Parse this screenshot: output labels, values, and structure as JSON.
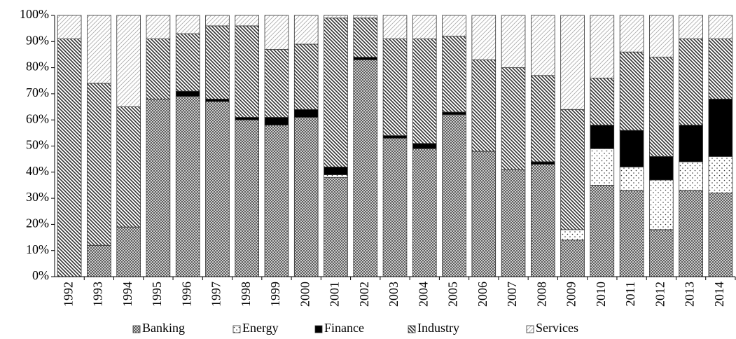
{
  "chart_data": {
    "type": "stacked-bar",
    "categories": [
      "1992",
      "1993",
      "1994",
      "1995",
      "1996",
      "1997",
      "1998",
      "1999",
      "2000",
      "2001",
      "2002",
      "2003",
      "2004",
      "2005",
      "2006",
      "2007",
      "2008",
      "2009",
      "2010",
      "2011",
      "2012",
      "2013",
      "2014"
    ],
    "series": [
      {
        "name": "Banking",
        "color": "#7f7f7f",
        "pattern": "crosshatch",
        "values": [
          0,
          12,
          19,
          68,
          69,
          67,
          60,
          58,
          61,
          38,
          83,
          53,
          49,
          62,
          48,
          41,
          43,
          14,
          35,
          33,
          18,
          33,
          32
        ]
      },
      {
        "name": "Energy",
        "color": "#ffffff",
        "pattern": "dots",
        "values": [
          0,
          0,
          0,
          0,
          0,
          0,
          0,
          0,
          0,
          1,
          0,
          0,
          0,
          0,
          0,
          0,
          0,
          4,
          14,
          9,
          19,
          11,
          14
        ]
      },
      {
        "name": "Finance",
        "color": "#000000",
        "pattern": "solid",
        "values": [
          0,
          0,
          0,
          0,
          2,
          1,
          1,
          3,
          3,
          3,
          1,
          1,
          2,
          1,
          0,
          0,
          1,
          0,
          9,
          14,
          9,
          14,
          22
        ]
      },
      {
        "name": "Industry",
        "color": "#595959",
        "pattern": "diagonal-dense",
        "values": [
          91,
          62,
          46,
          23,
          22,
          28,
          35,
          26,
          25,
          57,
          15,
          37,
          40,
          29,
          35,
          39,
          33,
          46,
          18,
          30,
          38,
          33,
          23
        ]
      },
      {
        "name": "Services",
        "color": "#bfbfbf",
        "pattern": "diagonal-light",
        "values": [
          9,
          26,
          35,
          9,
          7,
          4,
          4,
          13,
          11,
          1,
          1,
          9,
          9,
          8,
          17,
          20,
          23,
          36,
          24,
          14,
          16,
          9,
          9
        ]
      }
    ],
    "ylim": [
      0,
      100
    ],
    "yticks": [
      {
        "value": 0,
        "label": "0%"
      },
      {
        "value": 10,
        "label": "10%"
      },
      {
        "value": 20,
        "label": "20%"
      },
      {
        "value": 30,
        "label": "30%"
      },
      {
        "value": 40,
        "label": "40%"
      },
      {
        "value": 50,
        "label": "50%"
      },
      {
        "value": 60,
        "label": "60%"
      },
      {
        "value": 70,
        "label": "70%"
      },
      {
        "value": 80,
        "label": "80%"
      },
      {
        "value": 90,
        "label": "90%"
      },
      {
        "value": 100,
        "label": "100%"
      }
    ],
    "legend": "bottom"
  }
}
